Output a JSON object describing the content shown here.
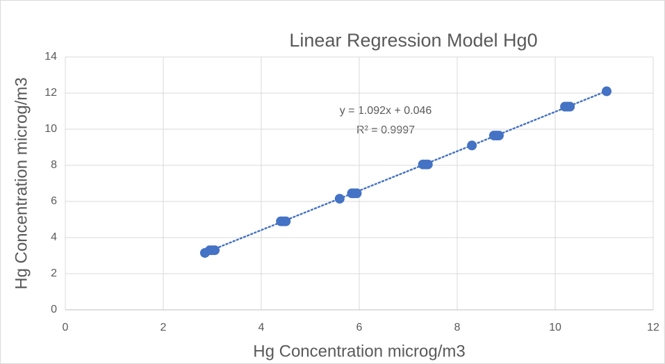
{
  "chart_data": {
    "type": "scatter",
    "title": "Linear Regression Model Hg0",
    "x_label": "Hg Concentration microg/m3",
    "y_label": "Hg Concentration microg/m3",
    "x": [
      2.85,
      2.95,
      3.0,
      3.05,
      4.4,
      4.45,
      4.5,
      5.6,
      5.85,
      5.9,
      5.95,
      7.3,
      7.35,
      7.4,
      8.3,
      8.75,
      8.8,
      8.85,
      10.2,
      10.25,
      10.3,
      11.05
    ],
    "values": [
      3.15,
      3.3,
      3.3,
      3.3,
      4.9,
      4.9,
      4.9,
      6.15,
      6.45,
      6.45,
      6.45,
      8.05,
      8.05,
      8.05,
      9.1,
      9.65,
      9.65,
      9.65,
      11.25,
      11.25,
      11.25,
      12.1
    ],
    "color": "#4472c4",
    "xlim": [
      0,
      12
    ],
    "xticks": [
      0,
      2,
      4,
      6,
      8,
      10,
      12
    ],
    "ylim": [
      0,
      14
    ],
    "yticks": [
      0,
      2,
      4,
      6,
      8,
      10,
      12,
      14
    ],
    "grid": true,
    "trendline": {
      "equation": "y = 1.092x + 0.046",
      "r_squared": "R² = 0.9997",
      "slope": 1.092,
      "intercept": 0.046
    }
  }
}
